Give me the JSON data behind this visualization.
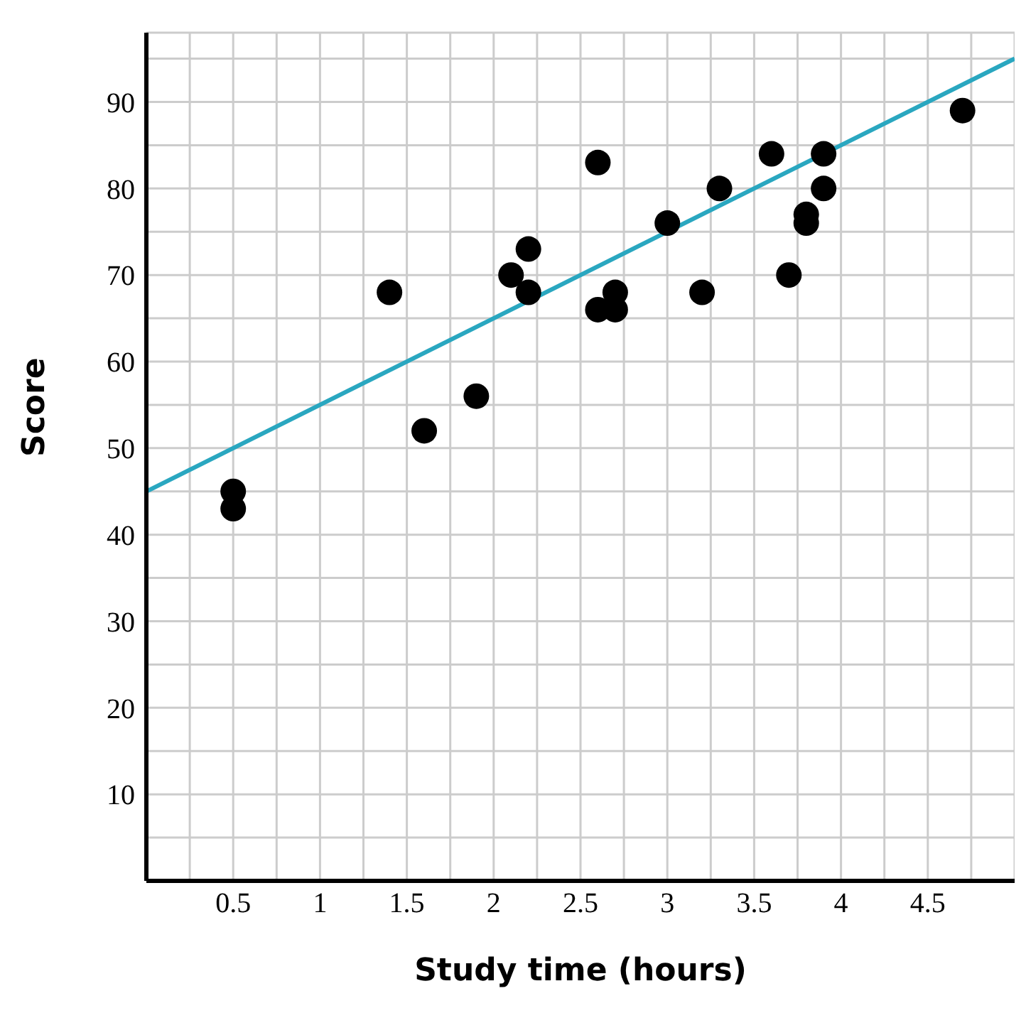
{
  "chart_data": {
    "type": "scatter",
    "xlabel": "Study time (hours)",
    "ylabel": "Score",
    "xlim": [
      0,
      5
    ],
    "ylim": [
      0,
      98
    ],
    "xticks": [
      {
        "value": 0.25,
        "label": null
      },
      0.5,
      {
        "value": 0.75,
        "label": null
      },
      1,
      {
        "value": 1.25,
        "label": null
      },
      1.5,
      {
        "value": 1.75,
        "label": null
      },
      2,
      {
        "value": 2.25,
        "label": null
      },
      2.5,
      {
        "value": 2.75,
        "label": null
      },
      3,
      {
        "value": 3.25,
        "label": null
      },
      3.5,
      {
        "value": 3.75,
        "label": null
      },
      4,
      {
        "value": 4.25,
        "label": null
      },
      4.5,
      {
        "value": 4.75,
        "label": null
      }
    ],
    "yticks": [
      {
        "value": 5,
        "label": null
      },
      10,
      {
        "value": 15,
        "label": null
      },
      20,
      {
        "value": 25,
        "label": null
      },
      30,
      {
        "value": 35,
        "label": null
      },
      40,
      {
        "value": 45,
        "label": null
      },
      50,
      {
        "value": 55,
        "label": null
      },
      60,
      {
        "value": 65,
        "label": null
      },
      70,
      {
        "value": 75,
        "label": null
      },
      80,
      {
        "value": 85,
        "label": null
      },
      90,
      {
        "value": 95,
        "label": null
      }
    ],
    "grid": true,
    "series": [
      {
        "marker": "circle",
        "color": "#000000",
        "x": [
          0.5,
          0.5,
          1.4,
          1.6,
          1.9,
          2.1,
          2.2,
          2.2,
          2.6,
          2.6,
          2.7,
          2.7,
          3,
          3.2,
          3.3,
          3.6,
          3.7,
          3.8,
          3.8,
          3.9,
          3.9,
          4.7
        ],
        "values": [
          45,
          43,
          68,
          52,
          56,
          70,
          73,
          68,
          83,
          66,
          68,
          66,
          76,
          68,
          80,
          84,
          70,
          77,
          76,
          84,
          80,
          89
        ]
      },
      {
        "type": "line",
        "marker": "none",
        "color": "#2aa7c0",
        "x": [
          0,
          5
        ],
        "values": [
          45,
          95
        ]
      }
    ]
  }
}
